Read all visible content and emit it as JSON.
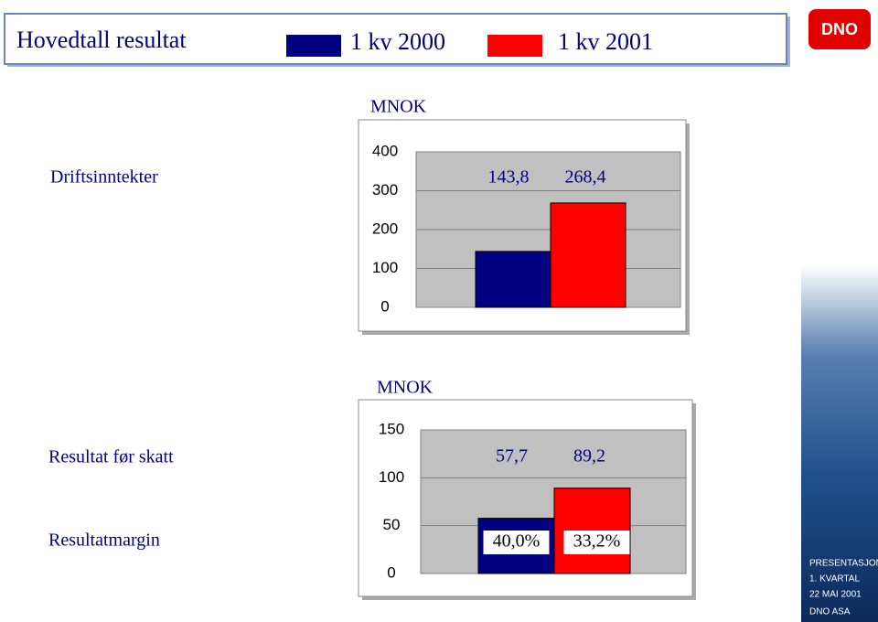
{
  "slide": {
    "title": "Hovedtall resultat",
    "row_labels": [
      "Driftsinntekter",
      "Resultat før skatt",
      "Resultatmargin"
    ],
    "logo": "DNO",
    "footer": [
      "PRESENTASJON",
      "1. KVARTAL",
      "22 MAI 2001",
      "DNO ASA"
    ]
  },
  "chart_data": [
    {
      "type": "bar",
      "title": "MNOK",
      "categories": [
        null
      ],
      "ylim": [
        0,
        400
      ],
      "yticks": [
        0,
        100,
        200,
        300,
        400
      ],
      "grid": true,
      "series": [
        {
          "name": "1 kv 2000",
          "color": "#000080",
          "values": [
            143.8
          ],
          "value_labels": [
            "143,8"
          ]
        },
        {
          "name": "1 kv 2001",
          "color": "#ff0000",
          "values": [
            268.4
          ],
          "value_labels": [
            "268,4"
          ]
        }
      ]
    },
    {
      "type": "bar",
      "title": "MNOK",
      "categories": [
        null
      ],
      "ylim": [
        0,
        150
      ],
      "yticks": [
        0,
        50,
        100,
        150
      ],
      "grid": true,
      "series": [
        {
          "color": "#000080",
          "values": [
            57.7
          ],
          "value_labels": [
            "57,7"
          ],
          "margins": [
            40.0
          ],
          "margin_labels": [
            "40,0%"
          ]
        },
        {
          "color": "#ff0000",
          "values": [
            89.2
          ],
          "value_labels": [
            "89,2"
          ],
          "margins": [
            33.2
          ],
          "margin_labels": [
            "33,2%"
          ]
        }
      ]
    }
  ]
}
